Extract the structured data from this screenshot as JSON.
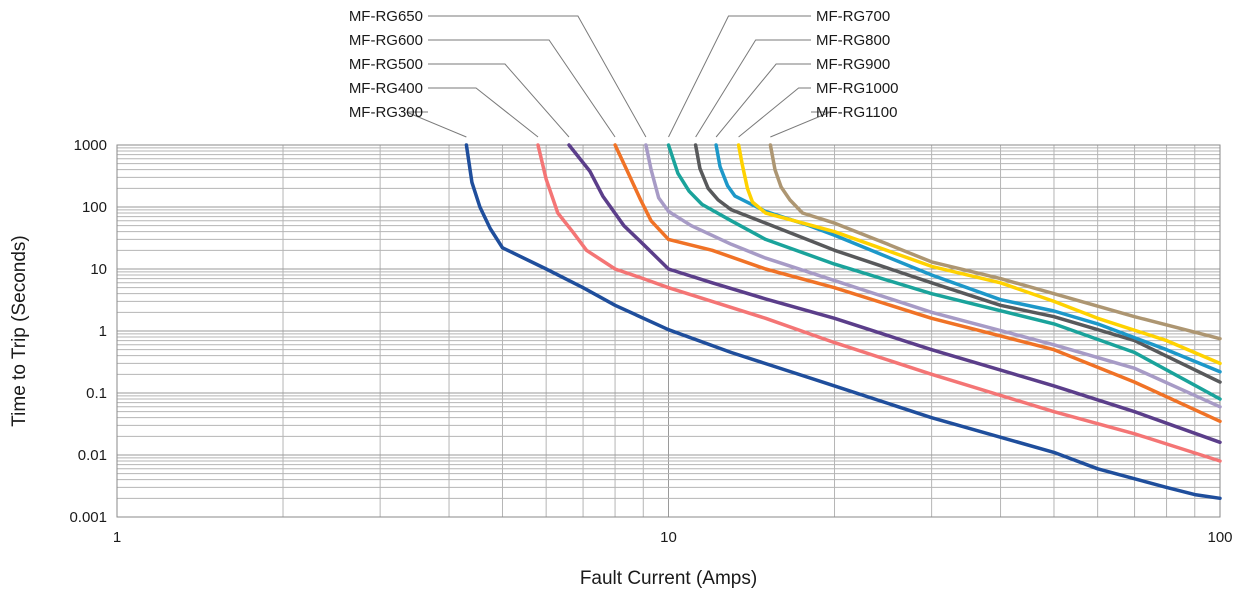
{
  "chart_data": {
    "type": "line",
    "title": "",
    "xlabel": "Fault Current (Amps)",
    "ylabel": "Time to Trip (Seconds)",
    "x_scale": "log",
    "y_scale": "log",
    "xlim": [
      1,
      100
    ],
    "ylim": [
      0.001,
      1000
    ],
    "grid": true,
    "legend": "callout-labels-top",
    "x_ticks": [
      {
        "value": 1,
        "label": "1"
      },
      {
        "value": 10,
        "label": "10"
      },
      {
        "value": 100,
        "label": "100"
      }
    ],
    "y_ticks": [
      {
        "value": 1000,
        "label": "1000"
      },
      {
        "value": 100,
        "label": "100"
      },
      {
        "value": 10,
        "label": "10"
      },
      {
        "value": 1,
        "label": "1"
      },
      {
        "value": 0.1,
        "label": "0.1"
      },
      {
        "value": 0.01,
        "label": "0.01"
      },
      {
        "value": 0.001,
        "label": "0.001"
      }
    ],
    "series": [
      {
        "name": "MF-RG300",
        "color": "#1f4e9c",
        "label_side": "left",
        "label_row": 4,
        "points": [
          [
            4.3,
            1000
          ],
          [
            4.4,
            250
          ],
          [
            4.55,
            100
          ],
          [
            4.75,
            45
          ],
          [
            5,
            22
          ],
          [
            6,
            10
          ],
          [
            7,
            5
          ],
          [
            8,
            2.6
          ],
          [
            10,
            1.05
          ],
          [
            13,
            0.45
          ],
          [
            20,
            0.13
          ],
          [
            30,
            0.04
          ],
          [
            50,
            0.011
          ],
          [
            60,
            0.006
          ],
          [
            80,
            0.003
          ],
          [
            90,
            0.0023
          ],
          [
            100,
            0.002
          ]
        ]
      },
      {
        "name": "MF-RG400",
        "color": "#f47575",
        "label_side": "left",
        "label_row": 3,
        "points": [
          [
            5.8,
            1000
          ],
          [
            6,
            280
          ],
          [
            6.3,
            80
          ],
          [
            6.7,
            40
          ],
          [
            7.1,
            20
          ],
          [
            8,
            10
          ],
          [
            9,
            7
          ],
          [
            10,
            5
          ],
          [
            12,
            3
          ],
          [
            15,
            1.6
          ],
          [
            20,
            0.65
          ],
          [
            30,
            0.2
          ],
          [
            50,
            0.05
          ],
          [
            70,
            0.022
          ],
          [
            100,
            0.008
          ]
        ]
      },
      {
        "name": "MF-RG500",
        "color": "#5b3e8a",
        "label_side": "left",
        "label_row": 2,
        "points": [
          [
            6.6,
            1000
          ],
          [
            7.2,
            380
          ],
          [
            7.6,
            150
          ],
          [
            8.3,
            50
          ],
          [
            9,
            25
          ],
          [
            10,
            10
          ],
          [
            12,
            6
          ],
          [
            15,
            3.3
          ],
          [
            20,
            1.6
          ],
          [
            30,
            0.5
          ],
          [
            50,
            0.13
          ],
          [
            70,
            0.05
          ],
          [
            100,
            0.016
          ]
        ]
      },
      {
        "name": "MF-RG600",
        "color": "#f07226",
        "label_side": "left",
        "label_row": 1,
        "points": [
          [
            8,
            1000
          ],
          [
            8.4,
            400
          ],
          [
            8.9,
            130
          ],
          [
            9.3,
            60
          ],
          [
            10,
            30
          ],
          [
            12,
            20
          ],
          [
            15,
            10
          ],
          [
            20,
            5
          ],
          [
            30,
            1.6
          ],
          [
            50,
            0.5
          ],
          [
            70,
            0.15
          ],
          [
            100,
            0.035
          ]
        ]
      },
      {
        "name": "MF-RG650",
        "color": "#a79bc6",
        "label_side": "left",
        "label_row": 0,
        "points": [
          [
            9.1,
            1000
          ],
          [
            9.3,
            400
          ],
          [
            9.6,
            140
          ],
          [
            10,
            85
          ],
          [
            11,
            50
          ],
          [
            13,
            25
          ],
          [
            15,
            15
          ],
          [
            20,
            6.5
          ],
          [
            30,
            2
          ],
          [
            50,
            0.6
          ],
          [
            70,
            0.25
          ],
          [
            100,
            0.06
          ]
        ]
      },
      {
        "name": "MF-RG700",
        "color": "#1aa39b",
        "label_side": "right",
        "label_row": 0,
        "points": [
          [
            10,
            1000
          ],
          [
            10.4,
            350
          ],
          [
            10.9,
            180
          ],
          [
            11.5,
            110
          ],
          [
            13,
            60
          ],
          [
            15,
            30
          ],
          [
            20,
            12
          ],
          [
            30,
            4
          ],
          [
            50,
            1.3
          ],
          [
            70,
            0.45
          ],
          [
            100,
            0.08
          ]
        ]
      },
      {
        "name": "MF-RG800",
        "color": "#58595b",
        "label_side": "right",
        "label_row": 1,
        "points": [
          [
            11.2,
            1000
          ],
          [
            11.4,
            420
          ],
          [
            11.8,
            200
          ],
          [
            12.3,
            130
          ],
          [
            13,
            90
          ],
          [
            15,
            55
          ],
          [
            20,
            20
          ],
          [
            30,
            6
          ],
          [
            40,
            2.6
          ],
          [
            50,
            1.7
          ],
          [
            70,
            0.7
          ],
          [
            100,
            0.15
          ]
        ]
      },
      {
        "name": "MF-RG900",
        "color": "#1d98c9",
        "label_side": "right",
        "label_row": 2,
        "points": [
          [
            12.2,
            1000
          ],
          [
            12.4,
            450
          ],
          [
            12.8,
            220
          ],
          [
            13.2,
            150
          ],
          [
            15,
            85
          ],
          [
            18,
            50
          ],
          [
            20,
            35
          ],
          [
            30,
            8
          ],
          [
            40,
            3.2
          ],
          [
            50,
            2.1
          ],
          [
            60,
            1.3
          ],
          [
            80,
            0.5
          ],
          [
            100,
            0.22
          ]
        ]
      },
      {
        "name": "MF-RG1000",
        "color": "#ffd200",
        "label_side": "right",
        "label_row": 3,
        "points": [
          [
            13.4,
            1000
          ],
          [
            13.6,
            500
          ],
          [
            13.9,
            200
          ],
          [
            14.2,
            120
          ],
          [
            15,
            80
          ],
          [
            20,
            40
          ],
          [
            30,
            11
          ],
          [
            40,
            6
          ],
          [
            50,
            3
          ],
          [
            60,
            1.6
          ],
          [
            80,
            0.7
          ],
          [
            100,
            0.3
          ]
        ]
      },
      {
        "name": "MF-RG1100",
        "color": "#ad9672",
        "label_side": "right",
        "label_row": 4,
        "points": [
          [
            15.3,
            1000
          ],
          [
            15.6,
            400
          ],
          [
            16,
            210
          ],
          [
            16.6,
            130
          ],
          [
            17.5,
            80
          ],
          [
            20,
            55
          ],
          [
            25,
            25
          ],
          [
            30,
            13
          ],
          [
            40,
            7
          ],
          [
            50,
            4
          ],
          [
            70,
            1.7
          ],
          [
            100,
            0.75
          ]
        ]
      }
    ]
  }
}
